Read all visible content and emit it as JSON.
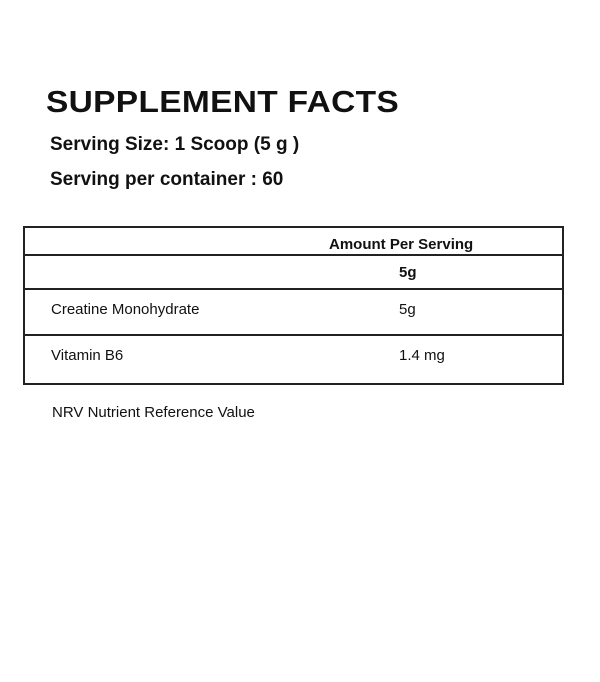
{
  "title": "SUPPLEMENT FACTS",
  "serving_size": "Serving Size: 1 Scoop (5 g )",
  "servings_per_container": "Serving per container : 60",
  "table": {
    "header": "Amount Per Serving",
    "subheader": "5g",
    "rows": [
      {
        "name": "Creatine Monohydrate",
        "amount": "5g"
      },
      {
        "name": "Vitamin B6",
        "amount": "1.4 mg"
      }
    ]
  },
  "footnote": "NRV Nutrient Reference Value"
}
